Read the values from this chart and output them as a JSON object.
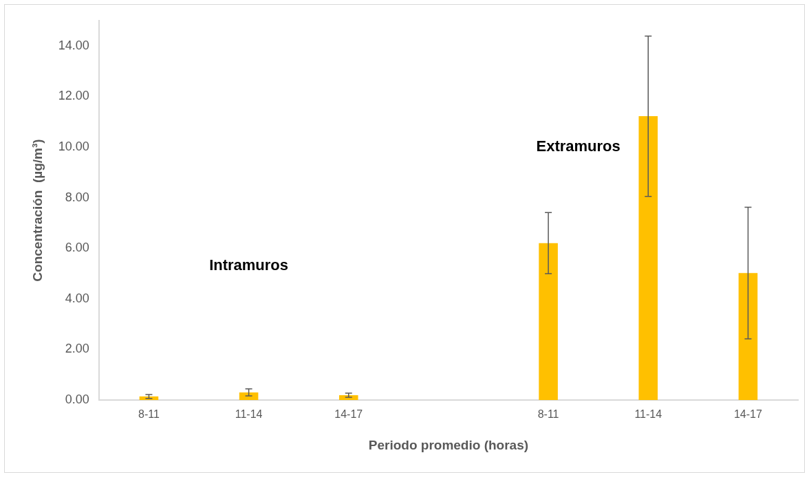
{
  "chart_data": {
    "type": "bar",
    "xlabel": "Periodo promedio (horas)",
    "ylabel": "Concentración  (µg/m³)",
    "categories": [
      "8-11",
      "11-14",
      "14-17",
      null,
      "8-11",
      "11-14",
      "14-17"
    ],
    "values": [
      0.14,
      0.3,
      0.19,
      null,
      6.2,
      11.22,
      5.02
    ],
    "errors": [
      0.08,
      0.14,
      0.08,
      null,
      1.21,
      3.17,
      2.6
    ],
    "color": "#ffc000",
    "ylim": [
      0,
      15
    ],
    "yticks": [
      {
        "value": 0,
        "label": "0.00"
      },
      {
        "value": 2,
        "label": "2.00"
      },
      {
        "value": 4,
        "label": "4.00"
      },
      {
        "value": 6,
        "label": "6.00"
      },
      {
        "value": 8,
        "label": "8.00"
      },
      {
        "value": 10,
        "label": "10.00"
      },
      {
        "value": 12,
        "label": "12.00"
      },
      {
        "value": 14,
        "label": "14.00"
      }
    ],
    "annotations": [
      "Intramuros",
      "Extramuros"
    ],
    "grid": false,
    "legend": false
  }
}
